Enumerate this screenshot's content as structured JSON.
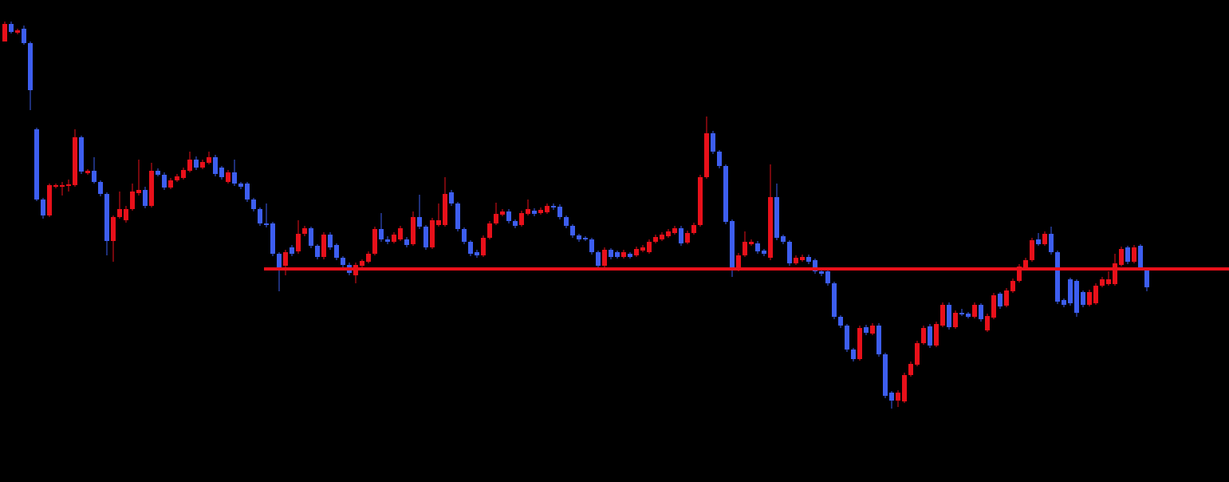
{
  "chart_data": {
    "type": "candlestick",
    "ylim": [
      0,
      604
    ],
    "up_color": "#e8101a",
    "down_color": "#3d5ef0",
    "open": [
      552,
      574,
      563,
      568,
      550,
      442,
      354,
      334,
      370,
      370,
      371,
      372,
      432,
      387,
      390,
      376,
      361,
      302,
      332,
      328,
      342,
      362,
      366,
      346,
      390,
      385,
      369,
      378,
      381,
      390,
      404,
      394,
      400,
      407,
      394,
      376,
      388,
      374,
      374,
      354,
      342,
      324,
      324,
      286,
      271,
      294,
      289,
      311,
      318,
      296,
      282,
      310,
      297,
      281,
      272,
      259,
      271,
      276,
      286,
      317,
      304,
      301,
      304,
      304,
      298,
      332,
      320,
      294,
      322,
      322,
      363,
      349,
      317,
      301,
      288,
      284,
      306,
      324,
      335,
      339,
      327,
      322,
      336,
      340,
      337,
      338,
      346,
      345,
      332,
      321,
      309,
      306,
      304,
      288,
      271,
      291,
      288,
      282,
      286,
      284,
      290,
      288,
      301,
      304,
      308,
      312,
      318,
      300,
      312,
      322,
      382,
      437,
      414,
      396,
      327,
      269,
      284,
      298,
      299,
      290,
      281,
      357,
      308,
      301,
      274,
      278,
      282,
      278,
      264,
      264,
      249,
      207,
      196,
      166,
      154,
      194,
      186,
      196,
      160,
      112,
      102,
      101,
      134,
      147,
      174,
      195,
      171,
      196,
      222,
      194,
      212,
      211,
      207,
      222,
      190,
      206,
      236,
      221,
      239,
      252,
      268,
      278,
      304,
      298,
      311,
      288,
      228,
      254,
      252,
      238,
      222,
      224,
      246,
      248,
      248,
      272,
      294,
      276,
      296,
      267
    ],
    "high": [
      577,
      577,
      568,
      572,
      552,
      444,
      356,
      374,
      374,
      376,
      379,
      442,
      434,
      392,
      407,
      378,
      363,
      334,
      364,
      346,
      374,
      404,
      370,
      400,
      393,
      388,
      381,
      386,
      394,
      414,
      408,
      404,
      414,
      410,
      396,
      391,
      404,
      376,
      376,
      356,
      344,
      349,
      326,
      288,
      291,
      297,
      328,
      321,
      320,
      298,
      313,
      313,
      299,
      283,
      275,
      275,
      279,
      289,
      320,
      337,
      308,
      313,
      321,
      307,
      339,
      360,
      322,
      331,
      349,
      382,
      366,
      351,
      319,
      303,
      291,
      309,
      327,
      350,
      342,
      342,
      329,
      340,
      354,
      343,
      344,
      349,
      349,
      348,
      334,
      323,
      311,
      308,
      306,
      290,
      294,
      293,
      290,
      291,
      288,
      295,
      297,
      304,
      310,
      313,
      317,
      321,
      321,
      315,
      325,
      385,
      458,
      440,
      416,
      398,
      329,
      287,
      314,
      304,
      302,
      292,
      398,
      374,
      310,
      303,
      284,
      285,
      285,
      280,
      266,
      266,
      251,
      209,
      198,
      168,
      196,
      197,
      199,
      199,
      162,
      114,
      115,
      137,
      151,
      177,
      196,
      198,
      201,
      225,
      225,
      215,
      217,
      213,
      225,
      224,
      211,
      237,
      238,
      243,
      255,
      273,
      281,
      306,
      312,
      314,
      320,
      290,
      230,
      256,
      254,
      240,
      241,
      249,
      257,
      264,
      286,
      295,
      296,
      297,
      298,
      269
    ],
    "low": [
      552,
      562,
      561,
      548,
      466,
      352,
      330,
      332,
      368,
      359,
      364,
      370,
      386,
      385,
      374,
      358,
      284,
      276,
      330,
      325,
      340,
      359,
      343,
      344,
      383,
      366,
      367,
      376,
      379,
      388,
      391,
      392,
      398,
      383,
      379,
      374,
      371,
      367,
      351,
      339,
      321,
      319,
      283,
      239,
      259,
      283,
      286,
      308,
      293,
      279,
      279,
      291,
      278,
      269,
      259,
      249,
      269,
      274,
      284,
      301,
      298,
      299,
      302,
      294,
      296,
      317,
      291,
      292,
      320,
      320,
      346,
      314,
      298,
      283,
      281,
      282,
      304,
      322,
      333,
      324,
      318,
      320,
      334,
      333,
      335,
      336,
      341,
      329,
      318,
      306,
      301,
      302,
      285,
      268,
      269,
      279,
      280,
      280,
      280,
      282,
      288,
      286,
      299,
      302,
      306,
      310,
      296,
      298,
      310,
      320,
      380,
      411,
      393,
      323,
      257,
      264,
      282,
      296,
      286,
      283,
      278,
      303,
      298,
      271,
      272,
      276,
      273,
      261,
      258,
      246,
      204,
      193,
      163,
      151,
      152,
      184,
      184,
      157,
      105,
      92,
      94,
      99,
      132,
      145,
      172,
      168,
      169,
      194,
      191,
      192,
      208,
      205,
      205,
      201,
      188,
      204,
      217,
      219,
      237,
      250,
      266,
      276,
      296,
      296,
      285,
      223,
      219,
      221,
      207,
      219,
      220,
      222,
      244,
      246,
      246,
      270,
      273,
      274,
      265,
      239
    ],
    "close": [
      574,
      564,
      566,
      550,
      491,
      354,
      334,
      372,
      372,
      372,
      373,
      432,
      389,
      390,
      376,
      361,
      302,
      332,
      342,
      342,
      364,
      366,
      346,
      390,
      385,
      369,
      378,
      383,
      391,
      404,
      394,
      401,
      407,
      386,
      382,
      388,
      374,
      370,
      354,
      342,
      324,
      322,
      286,
      269,
      288,
      286,
      311,
      318,
      296,
      282,
      310,
      294,
      281,
      272,
      262,
      272,
      277,
      286,
      317,
      304,
      301,
      310,
      318,
      297,
      332,
      320,
      294,
      328,
      328,
      361,
      349,
      317,
      301,
      286,
      284,
      306,
      324,
      336,
      339,
      327,
      321,
      337,
      342,
      336,
      341,
      346,
      344,
      332,
      321,
      309,
      304,
      304,
      288,
      271,
      291,
      282,
      282,
      288,
      282,
      292,
      294,
      301,
      307,
      310,
      314,
      318,
      299,
      312,
      322,
      382,
      437,
      414,
      396,
      326,
      269,
      284,
      301,
      301,
      289,
      286,
      357,
      306,
      301,
      274,
      281,
      282,
      276,
      264,
      261,
      249,
      207,
      196,
      166,
      154,
      193,
      187,
      196,
      160,
      108,
      102,
      112,
      134,
      148,
      174,
      193,
      171,
      198,
      222,
      194,
      212,
      210,
      207,
      222,
      204,
      208,
      234,
      220,
      240,
      252,
      270,
      278,
      303,
      298,
      311,
      288,
      226,
      222,
      224,
      212,
      222,
      238,
      246,
      254,
      254,
      274,
      292,
      276,
      294,
      268,
      244
    ],
    "hline": 267,
    "hline_color": "#e8101a"
  }
}
